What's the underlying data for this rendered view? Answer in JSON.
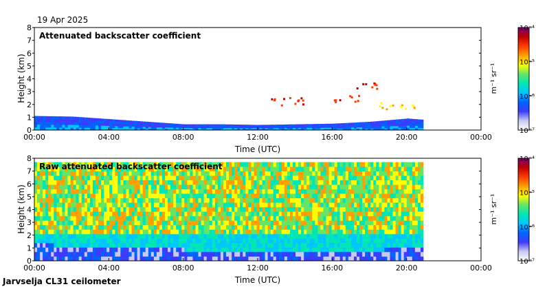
{
  "date_label": "19 Apr 2025",
  "footer_label": "Jarvselja CL31 ceilometer",
  "colorbar": {
    "unit_label": "m⁻¹ sr⁻¹",
    "ticks": [
      "10⁻⁷",
      "10⁻⁶",
      "10⁻⁵",
      "10⁻⁴"
    ],
    "colors": [
      "#ffffff",
      "#c8c8f0",
      "#3c3cff",
      "#0064ff",
      "#00c8ff",
      "#00e6b4",
      "#64e664",
      "#ffff00",
      "#ffa000",
      "#ff3c00",
      "#c00000",
      "#780078"
    ]
  },
  "chart_data": [
    {
      "type": "heatmap",
      "title": "Attenuated backscatter coefficient",
      "xlabel": "Time (UTC)",
      "ylabel": "Height (km)",
      "x_ticks": [
        "00:00",
        "04:00",
        "08:00",
        "12:00",
        "16:00",
        "20:00",
        "00:00"
      ],
      "y_ticks": [
        "0",
        "1",
        "2",
        "3",
        "4",
        "5",
        "6",
        "7",
        "8"
      ],
      "xlim_hours": [
        0,
        24
      ],
      "ylim_km": [
        0,
        8
      ],
      "data_end_hour": 20.9,
      "boundary_layer_top_km": [
        {
          "t": 0,
          "h": 1.1
        },
        {
          "t": 2,
          "h": 1.05
        },
        {
          "t": 4,
          "h": 0.85
        },
        {
          "t": 6,
          "h": 0.65
        },
        {
          "t": 8,
          "h": 0.45
        },
        {
          "t": 10,
          "h": 0.45
        },
        {
          "t": 12,
          "h": 0.4
        },
        {
          "t": 14,
          "h": 0.45
        },
        {
          "t": 16,
          "h": 0.5
        },
        {
          "t": 18,
          "h": 0.65
        },
        {
          "t": 20,
          "h": 0.9
        },
        {
          "t": 20.9,
          "h": 0.8
        }
      ],
      "cloud_layers": [
        {
          "t_start": 12.5,
          "t_end": 14.5,
          "h_km": 2.3,
          "level": "high"
        },
        {
          "t_start": 16.0,
          "t_end": 17.5,
          "h_km": 2.5,
          "level": "high"
        },
        {
          "t_start": 17.0,
          "t_end": 18.5,
          "h_km": 3.5,
          "level": "high"
        },
        {
          "t_start": 18.5,
          "t_end": 20.5,
          "h_km": 2.0,
          "level": "medium"
        }
      ]
    },
    {
      "type": "heatmap",
      "title": "Raw attenuated backscatter coefficient",
      "xlabel": "Time (UTC)",
      "ylabel": "Height (km)",
      "x_ticks": [
        "00:00",
        "04:00",
        "08:00",
        "12:00",
        "16:00",
        "20:00",
        "00:00"
      ],
      "y_ticks": [
        "0",
        "1",
        "2",
        "3",
        "4",
        "5",
        "6",
        "7",
        "8"
      ],
      "xlim_hours": [
        0,
        24
      ],
      "ylim_km": [
        0,
        8
      ],
      "data_end_hour": 20.9,
      "max_height_km": 7.7,
      "boundary_layer_top_km": [
        {
          "t": 0,
          "h": 1.1
        },
        {
          "t": 4,
          "h": 0.9
        },
        {
          "t": 8,
          "h": 0.7
        },
        {
          "t": 12,
          "h": 0.6
        },
        {
          "t": 16,
          "h": 0.5
        },
        {
          "t": 20,
          "h": 0.8
        },
        {
          "t": 20.9,
          "h": 0.8
        }
      ]
    }
  ]
}
